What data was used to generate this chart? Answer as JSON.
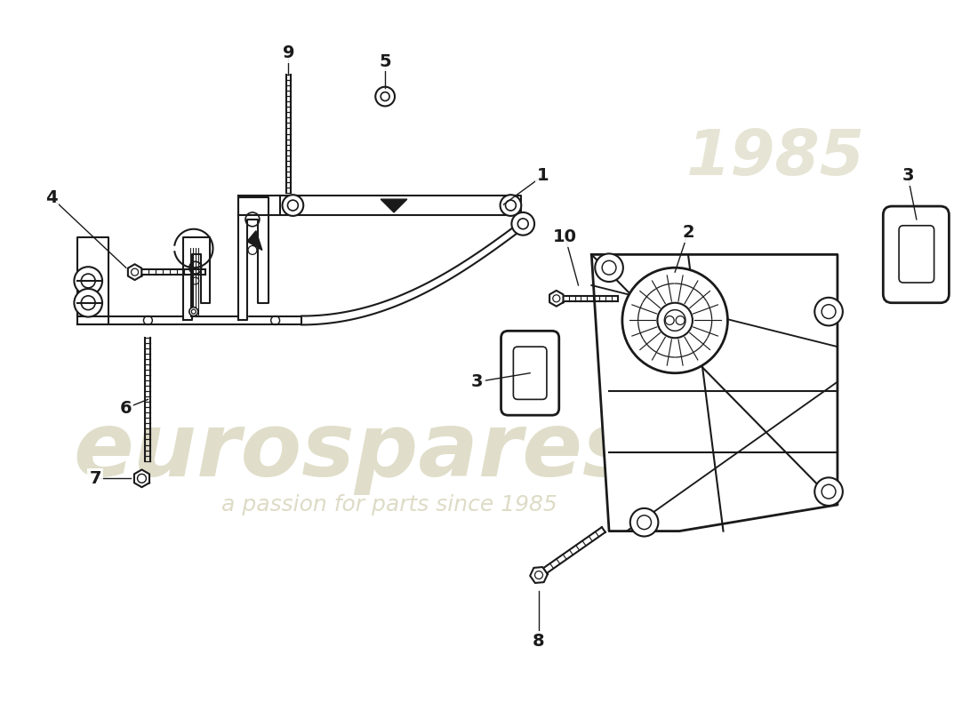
{
  "background_color": "#ffffff",
  "line_color": "#1a1a1a",
  "watermark_color": "#c8c4a0",
  "watermark_text1": "eurospares",
  "watermark_text2": "a passion for parts since 1985",
  "watermark_year": "1985"
}
